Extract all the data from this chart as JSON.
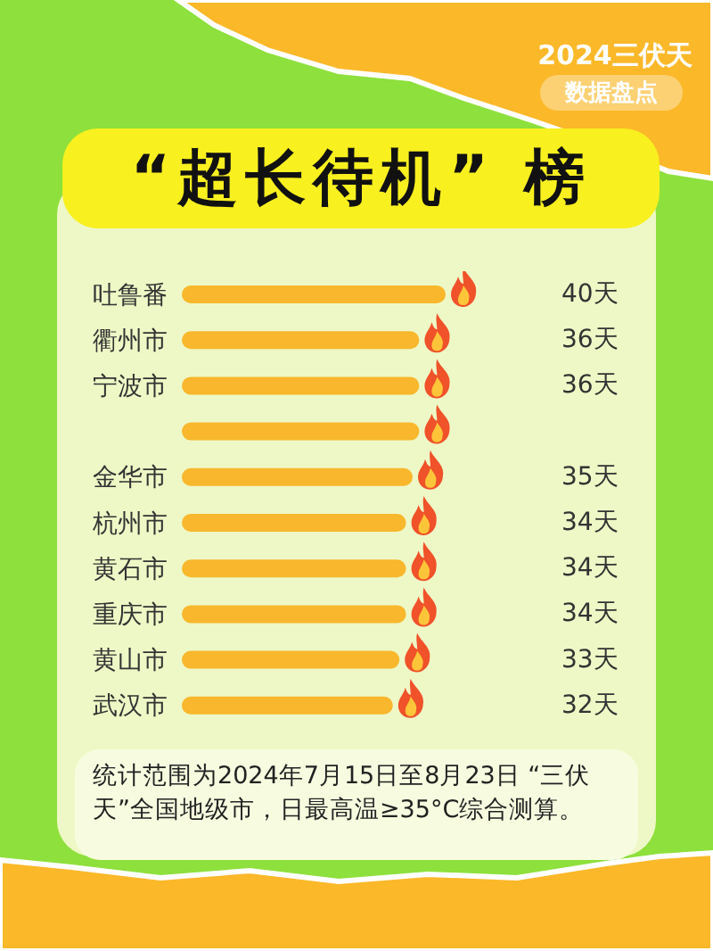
{
  "chart_data": {
    "type": "bar",
    "orientation": "horizontal",
    "title": "“超长待机” 榜",
    "subtitle": "2024三伏天",
    "categories": [
      "吐鲁番",
      "衢州市",
      "宁波市",
      null,
      "金华市",
      "杭州市",
      "黄石市",
      "重庆市",
      "黄山市",
      "武汉市"
    ],
    "values": [
      40,
      36,
      36,
      36,
      35,
      34,
      34,
      34,
      33,
      32
    ],
    "value_labels": [
      "40天",
      "36天",
      "36天",
      null,
      "35天",
      "34天",
      "34天",
      "34天",
      "33天",
      "32天"
    ],
    "color": "#f8b72c",
    "annotations": [
      "数据盘点",
      "统计范围为2024年7月15日至8月23日 “三伏天”全国地级市，日最高温≥35°C综合测算。"
    ]
  }
}
